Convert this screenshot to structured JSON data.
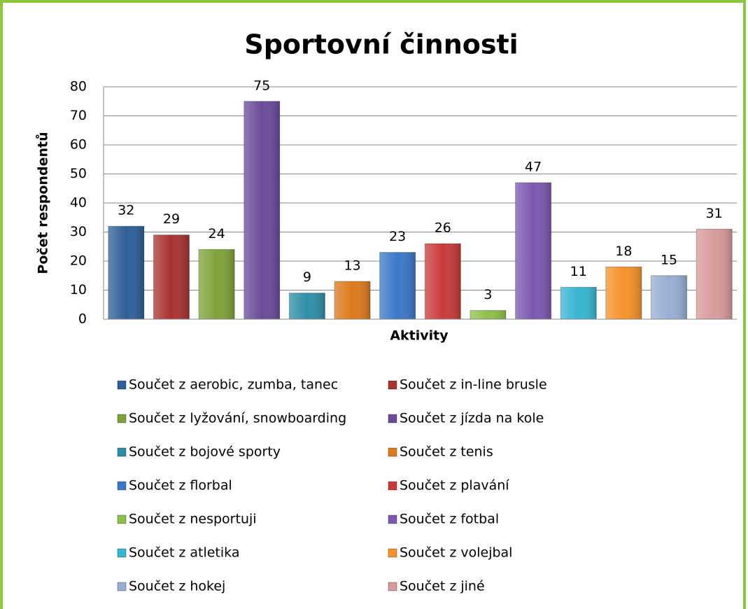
{
  "chart_data": {
    "type": "bar",
    "title": "Sportovní činnosti",
    "x_label": "Aktivity",
    "y_label": "Počet respondentů",
    "ylim": [
      0,
      80
    ],
    "yticks": [
      0,
      10,
      20,
      30,
      40,
      50,
      60,
      70,
      80
    ],
    "grid": true,
    "series": [
      {
        "name": "Součet z aerobic, zumba, tanec",
        "color": "#2f5f98",
        "values": [
          32
        ]
      },
      {
        "name": "Součet z in-line brusle",
        "color": "#a83232",
        "values": [
          29
        ]
      },
      {
        "name": "Součet z lyžování, snowboarding",
        "color": "#7fa33a",
        "values": [
          24
        ]
      },
      {
        "name": "Součet z jízda na kole",
        "color": "#6a4b9a",
        "values": [
          75
        ]
      },
      {
        "name": "Součet z bojové sporty",
        "color": "#2e8ea8",
        "values": [
          9
        ]
      },
      {
        "name": "Součet z tenis",
        "color": "#dd7a1c",
        "values": [
          13
        ]
      },
      {
        "name": "Součet z florbal",
        "color": "#3a78c8",
        "values": [
          23
        ]
      },
      {
        "name": "Součet z plavání",
        "color": "#c83a3a",
        "values": [
          26
        ]
      },
      {
        "name": "Součet z nesportuji",
        "color": "#8fc04a",
        "values": [
          3
        ]
      },
      {
        "name": "Součet z fotbal",
        "color": "#7b58b0",
        "values": [
          47
        ]
      },
      {
        "name": "Součet z atletika",
        "color": "#37b6d2",
        "values": [
          11
        ]
      },
      {
        "name": "Součet z volejbal",
        "color": "#f5922a",
        "values": [
          18
        ]
      },
      {
        "name": "Součet z hokej",
        "color": "#98aed3",
        "values": [
          15
        ]
      },
      {
        "name": "Součet z jiné",
        "color": "#d79a9a",
        "values": [
          31
        ]
      }
    ]
  }
}
